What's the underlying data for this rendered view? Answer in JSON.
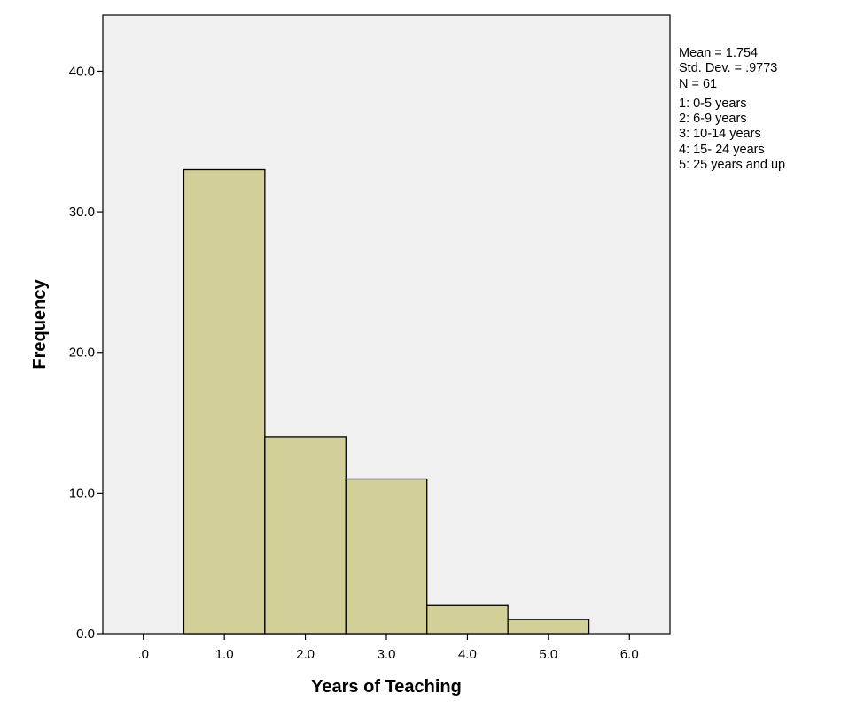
{
  "chart_data": {
    "type": "histogram",
    "title": "",
    "xlabel": "Years of Teaching",
    "ylabel": "Frequency",
    "xlim": [
      -0.5,
      6.5
    ],
    "ylim": [
      0,
      44
    ],
    "x_ticks": [
      0,
      1,
      2,
      3,
      4,
      5,
      6
    ],
    "x_tick_labels": [
      ".0",
      "1.0",
      "2.0",
      "3.0",
      "4.0",
      "5.0",
      "6.0"
    ],
    "y_ticks": [
      0,
      10,
      20,
      30,
      40
    ],
    "y_tick_labels": [
      "0.0",
      "10.0",
      "20.0",
      "30.0",
      "40.0"
    ],
    "bins": [
      {
        "center": 1,
        "width": 1,
        "value": 33
      },
      {
        "center": 2,
        "width": 1,
        "value": 14
      },
      {
        "center": 3,
        "width": 1,
        "value": 11
      },
      {
        "center": 4,
        "width": 1,
        "value": 2
      },
      {
        "center": 5,
        "width": 1,
        "value": 1
      }
    ],
    "grid": false,
    "colors": {
      "bar_fill": "#d3cf98",
      "plot_background": "#f0f0f0",
      "stroke": "#000000"
    }
  },
  "stats": {
    "mean": "Mean = 1.754",
    "std_dev": "Std. Dev. = .9773",
    "n": "N = 61"
  },
  "legend_notes": [
    "1: 0-5 years",
    "2: 6-9 years",
    "3: 10-14 years",
    "4: 15- 24 years",
    "5: 25 years and up"
  ]
}
